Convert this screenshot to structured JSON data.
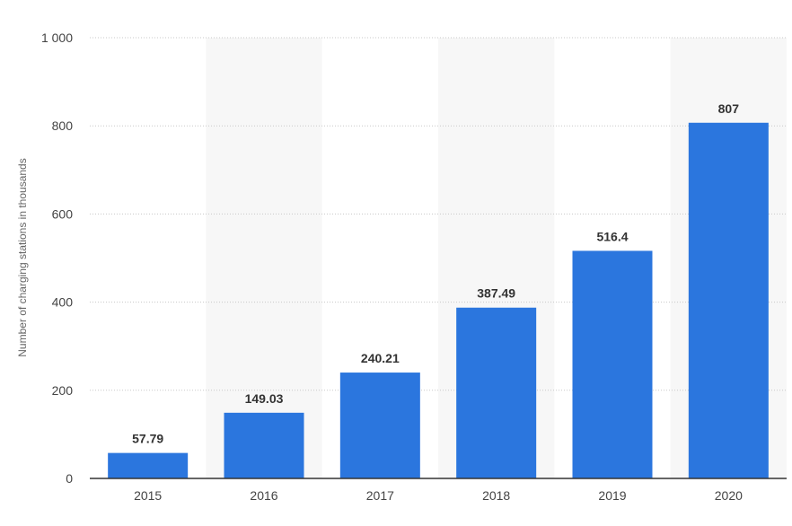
{
  "chart_data": {
    "type": "bar",
    "categories": [
      "2015",
      "2016",
      "2017",
      "2018",
      "2019",
      "2020"
    ],
    "values": [
      57.79,
      149.03,
      240.21,
      387.49,
      516.4,
      807
    ],
    "value_labels": [
      "57.79",
      "149.03",
      "240.21",
      "387.49",
      "516.4",
      "807"
    ],
    "ylabel": "Number of charging stations in thousands",
    "xlabel": "",
    "ylim": [
      0,
      1000
    ],
    "yticks": [
      0,
      200,
      400,
      600,
      800,
      1000
    ],
    "ytick_labels": [
      "0",
      "200",
      "400",
      "600",
      "800",
      "1 000"
    ],
    "grid": true,
    "bar_color": "#2b76de",
    "alternate_band_color": "#f7f7f7"
  }
}
